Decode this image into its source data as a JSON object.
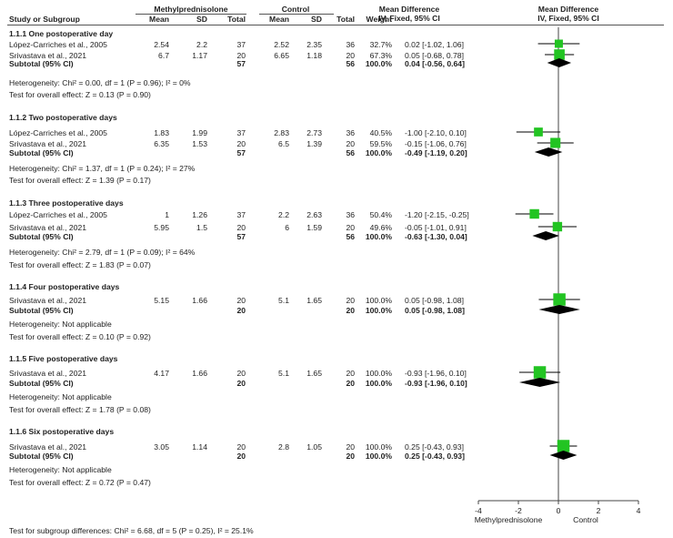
{
  "header": {
    "group1": "Methylprednisolone",
    "group2": "Control",
    "md_title": "Mean Difference",
    "md_sub": "IV, Fixed, 95% CI",
    "plot_title": "Mean Difference",
    "plot_sub": "IV, Fixed, 95% CI",
    "study": "Study or Subgroup",
    "mean": "Mean",
    "sd": "SD",
    "total": "Total",
    "weight": "Weight"
  },
  "subgroups": [
    {
      "title": "1.1.1 One postoperative day",
      "studies": [
        {
          "name": "López-Carriches et al., 2005",
          "m1": "2.54",
          "sd1": "2.2",
          "n1": "37",
          "m2": "2.52",
          "sd2": "2.35",
          "n2": "36",
          "weight": "32.7%",
          "ci": "0.02 [-1.02, 1.06]"
        },
        {
          "name": "Srivastava et al., 2021",
          "m1": "6.7",
          "sd1": "1.17",
          "n1": "20",
          "m2": "6.65",
          "sd2": "1.18",
          "n2": "20",
          "weight": "67.3%",
          "ci": "0.05 [-0.68, 0.78]"
        }
      ],
      "subtotal": {
        "label": "Subtotal (95% CI)",
        "n1": "57",
        "n2": "56",
        "weight": "100.0%",
        "ci": "0.04 [-0.56, 0.64]"
      },
      "heterogeneity": "Heterogeneity: Chi² = 0.00, df = 1 (P = 0.96); I² = 0%",
      "overall": "Test for overall effect: Z = 0.13 (P = 0.90)"
    },
    {
      "title": "1.1.2 Two postoperative days",
      "studies": [
        {
          "name": "López-Carriches et al., 2005",
          "m1": "1.83",
          "sd1": "1.99",
          "n1": "37",
          "m2": "2.83",
          "sd2": "2.73",
          "n2": "36",
          "weight": "40.5%",
          "ci": "-1.00 [-2.10, 0.10]"
        },
        {
          "name": "Srivastava et al., 2021",
          "m1": "6.35",
          "sd1": "1.53",
          "n1": "20",
          "m2": "6.5",
          "sd2": "1.39",
          "n2": "20",
          "weight": "59.5%",
          "ci": "-0.15 [-1.06, 0.76]"
        }
      ],
      "subtotal": {
        "label": "Subtotal (95% CI)",
        "n1": "57",
        "n2": "56",
        "weight": "100.0%",
        "ci": "-0.49 [-1.19, 0.20]"
      },
      "heterogeneity": "Heterogeneity: Chi² = 1.37, df = 1 (P = 0.24); I² = 27%",
      "overall": "Test for overall effect: Z = 1.39 (P = 0.17)"
    },
    {
      "title": "1.1.3 Three postoperative days",
      "studies": [
        {
          "name": "López-Carriches et al., 2005",
          "m1": "1",
          "sd1": "1.26",
          "n1": "37",
          "m2": "2.2",
          "sd2": "2.63",
          "n2": "36",
          "weight": "50.4%",
          "ci": "-1.20 [-2.15, -0.25]"
        },
        {
          "name": "Srivastava et al., 2021",
          "m1": "5.95",
          "sd1": "1.5",
          "n1": "20",
          "m2": "6",
          "sd2": "1.59",
          "n2": "20",
          "weight": "49.6%",
          "ci": "-0.05 [-1.01, 0.91]"
        }
      ],
      "subtotal": {
        "label": "Subtotal (95% CI)",
        "n1": "57",
        "n2": "56",
        "weight": "100.0%",
        "ci": "-0.63 [-1.30, 0.04]"
      },
      "heterogeneity": "Heterogeneity: Chi² = 2.79, df = 1 (P = 0.09); I² = 64%",
      "overall": "Test for overall effect: Z = 1.83 (P = 0.07)"
    },
    {
      "title": "1.1.4 Four postoperative days",
      "studies": [
        {
          "name": "Srivastava et al., 2021",
          "m1": "5.15",
          "sd1": "1.66",
          "n1": "20",
          "m2": "5.1",
          "sd2": "1.65",
          "n2": "20",
          "weight": "100.0%",
          "ci": "0.05 [-0.98, 1.08]"
        }
      ],
      "subtotal": {
        "label": "Subtotal (95% CI)",
        "n1": "20",
        "n2": "20",
        "weight": "100.0%",
        "ci": "0.05 [-0.98, 1.08]"
      },
      "heterogeneity": "Heterogeneity: Not applicable",
      "overall": "Test for overall effect: Z = 0.10 (P = 0.92)"
    },
    {
      "title": "1.1.5 Five postoperative days",
      "studies": [
        {
          "name": "Srivastava et al., 2021",
          "m1": "4.17",
          "sd1": "1.66",
          "n1": "20",
          "m2": "5.1",
          "sd2": "1.65",
          "n2": "20",
          "weight": "100.0%",
          "ci": "-0.93 [-1.96, 0.10]"
        }
      ],
      "subtotal": {
        "label": "Subtotal (95% CI)",
        "n1": "20",
        "n2": "20",
        "weight": "100.0%",
        "ci": "-0.93 [-1.96, 0.10]"
      },
      "heterogeneity": "Heterogeneity: Not applicable",
      "overall": "Test for overall effect: Z = 1.78 (P = 0.08)"
    },
    {
      "title": "1.1.6 Six postoperative days",
      "studies": [
        {
          "name": "Srivastava et al., 2021",
          "m1": "3.05",
          "sd1": "1.14",
          "n1": "20",
          "m2": "2.8",
          "sd2": "1.05",
          "n2": "20",
          "weight": "100.0%",
          "ci": "0.25 [-0.43, 0.93]"
        }
      ],
      "subtotal": {
        "label": "Subtotal (95% CI)",
        "n1": "20",
        "n2": "20",
        "weight": "100.0%",
        "ci": "0.25 [-0.43, 0.93]"
      },
      "heterogeneity": "Heterogeneity: Not applicable",
      "overall": "Test for overall effect: Z = 0.72 (P = 0.47)"
    }
  ],
  "footer": "Test for subgroup differences: Chi² = 6.68, df = 5 (P = 0.25), I² = 25.1%",
  "colors": {
    "study_square": "#22c422",
    "diamond": "#000000",
    "line": "#000000"
  },
  "chart_data": {
    "type": "forest",
    "xlim": [
      -4,
      4
    ],
    "x_ticks": [
      "-4",
      "-2",
      "0",
      "2",
      "4"
    ],
    "xlabel_left": "Methylprednisolone",
    "xlabel_right": "Control",
    "rows": [
      {
        "kind": "study",
        "est": 0.02,
        "lo": -1.02,
        "hi": 1.06,
        "weight": 32.7
      },
      {
        "kind": "study",
        "est": 0.05,
        "lo": -0.68,
        "hi": 0.78,
        "weight": 67.3
      },
      {
        "kind": "subtotal",
        "est": 0.04,
        "lo": -0.56,
        "hi": 0.64
      },
      {
        "kind": "study",
        "est": -1.0,
        "lo": -2.1,
        "hi": 0.1,
        "weight": 40.5
      },
      {
        "kind": "study",
        "est": -0.15,
        "lo": -1.06,
        "hi": 0.76,
        "weight": 59.5
      },
      {
        "kind": "subtotal",
        "est": -0.49,
        "lo": -1.19,
        "hi": 0.2
      },
      {
        "kind": "study",
        "est": -1.2,
        "lo": -2.15,
        "hi": -0.25,
        "weight": 50.4
      },
      {
        "kind": "study",
        "est": -0.05,
        "lo": -1.01,
        "hi": 0.91,
        "weight": 49.6
      },
      {
        "kind": "subtotal",
        "est": -0.63,
        "lo": -1.3,
        "hi": 0.04
      },
      {
        "kind": "study",
        "est": 0.05,
        "lo": -0.98,
        "hi": 1.08,
        "weight": 100.0
      },
      {
        "kind": "subtotal",
        "est": 0.05,
        "lo": -0.98,
        "hi": 1.08
      },
      {
        "kind": "study",
        "est": -0.93,
        "lo": -1.96,
        "hi": 0.1,
        "weight": 100.0
      },
      {
        "kind": "subtotal",
        "est": -0.93,
        "lo": -1.96,
        "hi": 0.1
      },
      {
        "kind": "study",
        "est": 0.25,
        "lo": -0.43,
        "hi": 0.93,
        "weight": 100.0
      },
      {
        "kind": "subtotal",
        "est": 0.25,
        "lo": -0.43,
        "hi": 0.93
      }
    ]
  }
}
